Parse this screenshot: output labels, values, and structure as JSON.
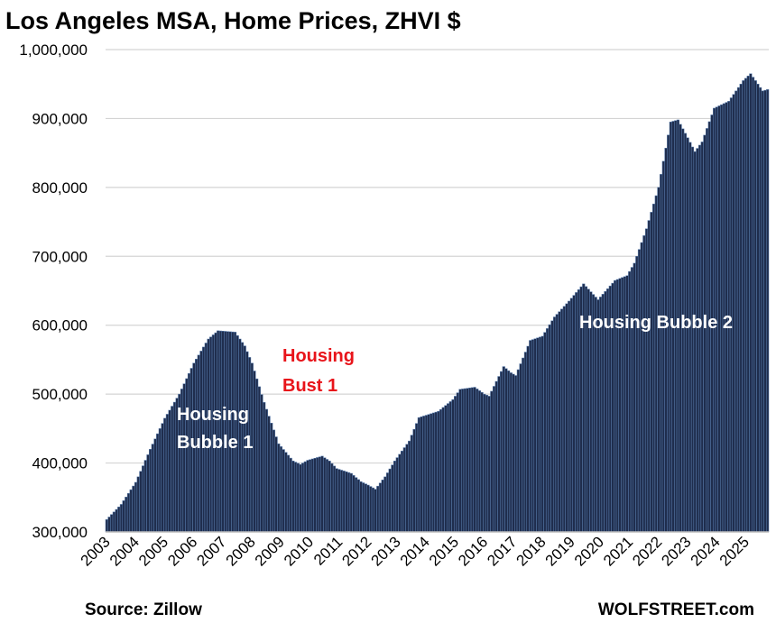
{
  "chart_data": {
    "type": "bar",
    "title": "Los Angeles MSA, Home Prices, ZHVI $",
    "xlabel": "",
    "ylabel": "",
    "ylim": [
      300000,
      1000000
    ],
    "yticks": [
      {
        "value": 300000,
        "label": "300,000"
      },
      {
        "value": 400000,
        "label": "400,000"
      },
      {
        "value": 500000,
        "label": "500,000"
      },
      {
        "value": 600000,
        "label": "600,000"
      },
      {
        "value": 700000,
        "label": "700,000"
      },
      {
        "value": 800000,
        "label": "800,000"
      },
      {
        "value": 900000,
        "label": "900,000"
      },
      {
        "value": 1000000,
        "label": "1,000,000"
      }
    ],
    "xticks": [
      "2003",
      "2004",
      "2005",
      "2006",
      "2007",
      "2008",
      "2009",
      "2010",
      "2011",
      "2012",
      "2013",
      "2014",
      "2015",
      "2016",
      "2017",
      "2018",
      "2019",
      "2020",
      "2021",
      "2022",
      "2023",
      "2024",
      "2025"
    ],
    "grid": true,
    "frequency": "monthly",
    "start": "2003-01",
    "end": "2025-10",
    "bar_color": "#1f2d4d",
    "bar_edge_color": "#5b7fb0",
    "anchors": [
      [
        "2003-01",
        318000
      ],
      [
        "2003-07",
        340000
      ],
      [
        "2004-01",
        372000
      ],
      [
        "2004-07",
        420000
      ],
      [
        "2005-01",
        465000
      ],
      [
        "2005-07",
        500000
      ],
      [
        "2006-01",
        545000
      ],
      [
        "2006-07",
        580000
      ],
      [
        "2006-11",
        592000
      ],
      [
        "2007-06",
        590000
      ],
      [
        "2007-10",
        570000
      ],
      [
        "2008-01",
        545000
      ],
      [
        "2008-06",
        488000
      ],
      [
        "2008-12",
        428000
      ],
      [
        "2009-06",
        403000
      ],
      [
        "2009-09",
        398000
      ],
      [
        "2009-12",
        404000
      ],
      [
        "2010-06",
        410000
      ],
      [
        "2010-09",
        403000
      ],
      [
        "2010-12",
        392000
      ],
      [
        "2011-06",
        385000
      ],
      [
        "2011-10",
        373000
      ],
      [
        "2012-01",
        368000
      ],
      [
        "2012-04",
        362000
      ],
      [
        "2012-08",
        380000
      ],
      [
        "2012-12",
        403000
      ],
      [
        "2013-06",
        432000
      ],
      [
        "2013-10",
        466000
      ],
      [
        "2014-06",
        475000
      ],
      [
        "2014-12",
        492000
      ],
      [
        "2015-03",
        507000
      ],
      [
        "2015-09",
        510000
      ],
      [
        "2016-01",
        500000
      ],
      [
        "2016-03",
        497000
      ],
      [
        "2016-09",
        540000
      ],
      [
        "2016-12",
        531000
      ],
      [
        "2017-02",
        527000
      ],
      [
        "2017-08",
        578000
      ],
      [
        "2018-01",
        584000
      ],
      [
        "2018-06",
        612000
      ],
      [
        "2018-12",
        635000
      ],
      [
        "2019-06",
        660000
      ],
      [
        "2019-12",
        637000
      ],
      [
        "2020-07",
        665000
      ],
      [
        "2020-12",
        672000
      ],
      [
        "2021-03",
        690000
      ],
      [
        "2021-08",
        740000
      ],
      [
        "2022-01",
        800000
      ],
      [
        "2022-06",
        895000
      ],
      [
        "2022-09",
        898000
      ],
      [
        "2023-01",
        872000
      ],
      [
        "2023-04",
        852000
      ],
      [
        "2023-07",
        866000
      ],
      [
        "2023-12",
        915000
      ],
      [
        "2024-06",
        925000
      ],
      [
        "2024-12",
        955000
      ],
      [
        "2025-03",
        965000
      ],
      [
        "2025-08",
        940000
      ],
      [
        "2025-10",
        942000
      ]
    ],
    "annotations": [
      {
        "text": "Housing",
        "color": "#ffffff"
      },
      {
        "text": "Bubble 1",
        "color": "#ffffff"
      },
      {
        "text": "Housing",
        "color": "#e8141a"
      },
      {
        "text": "Bust 1",
        "color": "#e8141a"
      },
      {
        "text": "Housing Bubble 2",
        "color": "#ffffff"
      }
    ]
  },
  "footer": {
    "source": "Source: Zillow",
    "brand": "WOLFSTREET.com"
  }
}
